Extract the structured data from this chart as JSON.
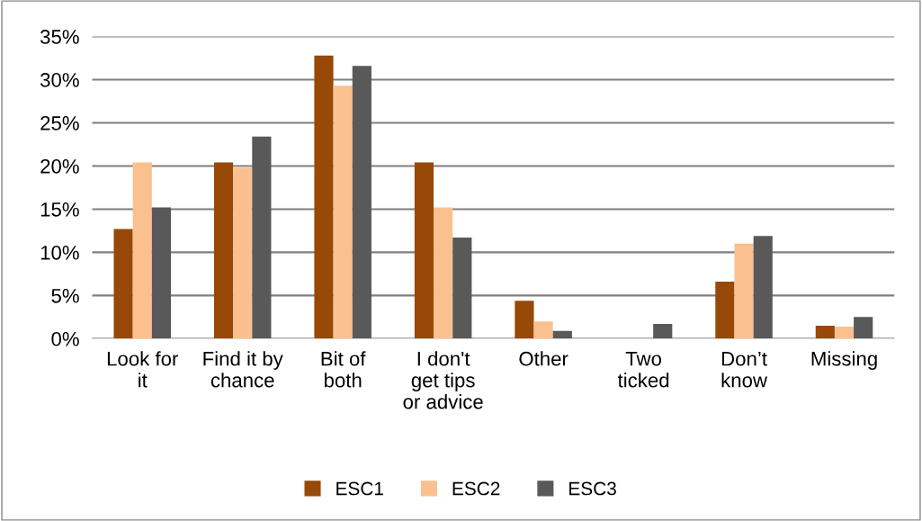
{
  "chart_data": {
    "type": "bar",
    "categories": [
      "Look for\nit",
      "Find it by\nchance",
      "Bit of\nboth",
      "I don't\nget tips\nor advice",
      "Other",
      "Two\nticked",
      "Don’t\nknow",
      "Missing"
    ],
    "series": [
      {
        "name": "ESC1",
        "color": "#984807",
        "values": [
          12.7,
          20.4,
          32.8,
          20.4,
          4.4,
          0,
          6.6,
          1.5
        ]
      },
      {
        "name": "ESC2",
        "color": "#fac090",
        "values": [
          20.4,
          19.8,
          29.3,
          15.2,
          2.0,
          0,
          11.0,
          1.4
        ]
      },
      {
        "name": "ESC3",
        "color": "#595959",
        "values": [
          15.2,
          23.4,
          31.6,
          11.7,
          0.9,
          1.7,
          11.9,
          2.5
        ]
      }
    ],
    "ylim": [
      0,
      35
    ],
    "yticks": [
      {
        "value": 0,
        "label": "0%"
      },
      {
        "value": 5,
        "label": "5%"
      },
      {
        "value": 10,
        "label": "10%"
      },
      {
        "value": 15,
        "label": "15%"
      },
      {
        "value": 20,
        "label": "20%"
      },
      {
        "value": 25,
        "label": "25%"
      },
      {
        "value": 30,
        "label": "30%"
      },
      {
        "value": 35,
        "label": "35%"
      }
    ],
    "grid": "y",
    "legend": "bottom"
  }
}
